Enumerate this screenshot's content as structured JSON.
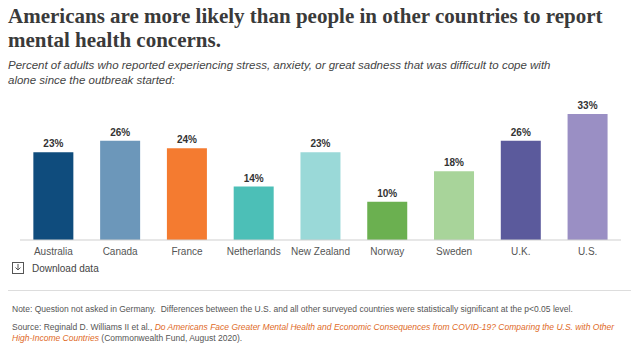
{
  "chart_data": {
    "type": "bar",
    "title": "Americans are more likely than people in other countries to report mental health concerns.",
    "subtitle": "Percent of adults who reported experiencing stress, anxiety, or great sadness that was difficult to cope with alone since the outbreak started:",
    "categories": [
      "Australia",
      "Canada",
      "France",
      "Netherlands",
      "New Zealand",
      "Norway",
      "Sweden",
      "U.K.",
      "U.S."
    ],
    "values": [
      23,
      26,
      24,
      14,
      23,
      10,
      18,
      26,
      33
    ],
    "value_labels": [
      "23%",
      "26%",
      "24%",
      "14%",
      "23%",
      "10%",
      "18%",
      "26%",
      "33%"
    ],
    "colors": [
      "#0f4c7d",
      "#6c97ba",
      "#f47b30",
      "#4cbfb7",
      "#9ad9d8",
      "#6bb050",
      "#a8d49a",
      "#5b5a9c",
      "#9a8fc4"
    ],
    "ylim": [
      0,
      33
    ],
    "data_labels": true,
    "tick_labels": "x",
    "download": "Download data",
    "note": "Note: Question not asked in Germany.  Differences between the U.S. and all other surveyed countries were statistically significant at the p<0.05 level.",
    "source": {
      "label": "Source:",
      "author": "Reginald D. Williams II et al.,",
      "link": "Do Americans Face Greater Mental Health and Economic Consequences from COVID-19? Comparing the U.S. with Other High-Income Countries",
      "publisher": "(Commonwealth Fund, August 2020)."
    }
  }
}
